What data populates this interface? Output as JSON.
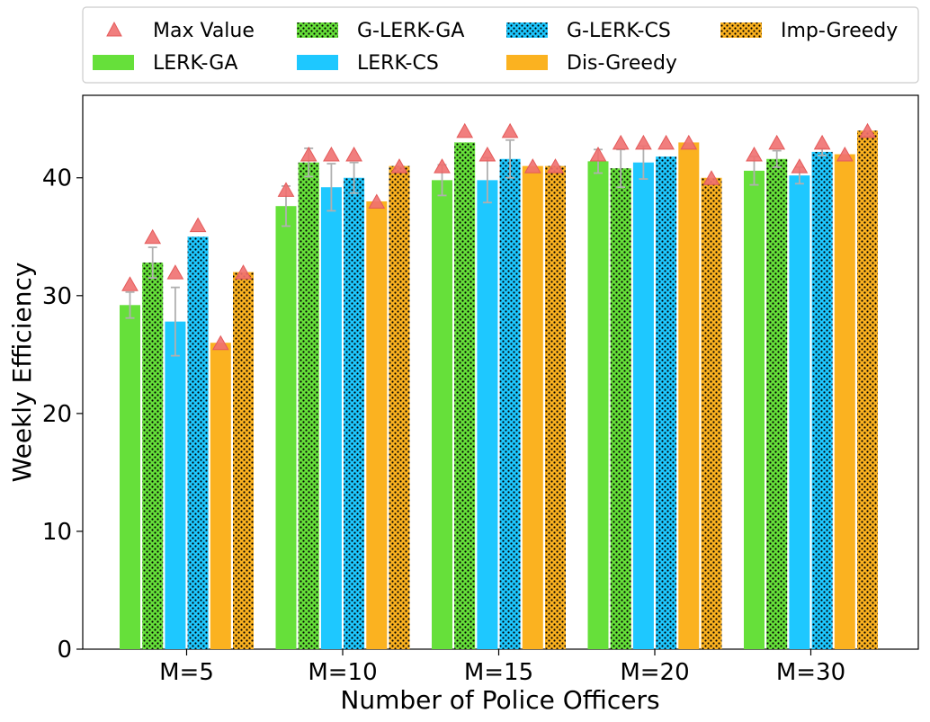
{
  "chart_data": {
    "type": "bar",
    "xlabel": "Number of Police Officers",
    "ylabel": "Weekly Efficiency",
    "ylim": [
      0,
      47
    ],
    "yticks": [
      0,
      10,
      20,
      30,
      40
    ],
    "categories": [
      "M=5",
      "M=10",
      "M=15",
      "M=20",
      "M=30"
    ],
    "series": [
      {
        "name": "LERK-GA",
        "color": "#66e03a",
        "hatched": false,
        "values": [
          29.2,
          37.6,
          39.8,
          41.4,
          40.6
        ],
        "err": [
          1.1,
          1.7,
          1.3,
          1.0,
          1.2
        ],
        "max": [
          31,
          39,
          41,
          42,
          42
        ]
      },
      {
        "name": "G-LERK-GA",
        "color": "#66e03a",
        "hatched": true,
        "values": [
          32.8,
          41.3,
          43.0,
          40.8,
          41.6
        ],
        "err": [
          1.3,
          1.2,
          0,
          1.6,
          0.7
        ],
        "max": [
          35,
          42,
          44,
          43,
          43
        ]
      },
      {
        "name": "LERK-CS",
        "color": "#1ec8ff",
        "hatched": false,
        "values": [
          27.8,
          39.2,
          39.8,
          41.3,
          40.2
        ],
        "err": [
          2.9,
          2.0,
          1.9,
          1.4,
          0.7
        ],
        "max": [
          32,
          42,
          42,
          43,
          41
        ]
      },
      {
        "name": "G-LERK-CS",
        "color": "#1ec8ff",
        "hatched": true,
        "values": [
          35.0,
          40.0,
          41.6,
          41.8,
          42.2
        ],
        "err": [
          0,
          1.3,
          1.6,
          0,
          0.3
        ],
        "max": [
          36,
          42,
          44,
          43,
          43
        ]
      },
      {
        "name": "Dis-Greedy",
        "color": "#fbb220",
        "hatched": false,
        "values": [
          26.0,
          38.0,
          41.0,
          43.0,
          42.0
        ],
        "err": [
          0,
          0,
          0,
          0,
          0
        ],
        "max": [
          26,
          38,
          41,
          43,
          42
        ]
      },
      {
        "name": "Imp-Greedy",
        "color": "#fbb220",
        "hatched": true,
        "values": [
          32.0,
          41.0,
          41.0,
          40.0,
          44.0
        ],
        "err": [
          0,
          0,
          0,
          0,
          0
        ],
        "max": [
          32,
          41,
          41,
          40,
          44
        ]
      }
    ],
    "max_marker": {
      "name": "Max Value",
      "color": "#f07070",
      "shape": "triangle"
    },
    "legend": {
      "placement": "top",
      "columns": 4
    }
  }
}
